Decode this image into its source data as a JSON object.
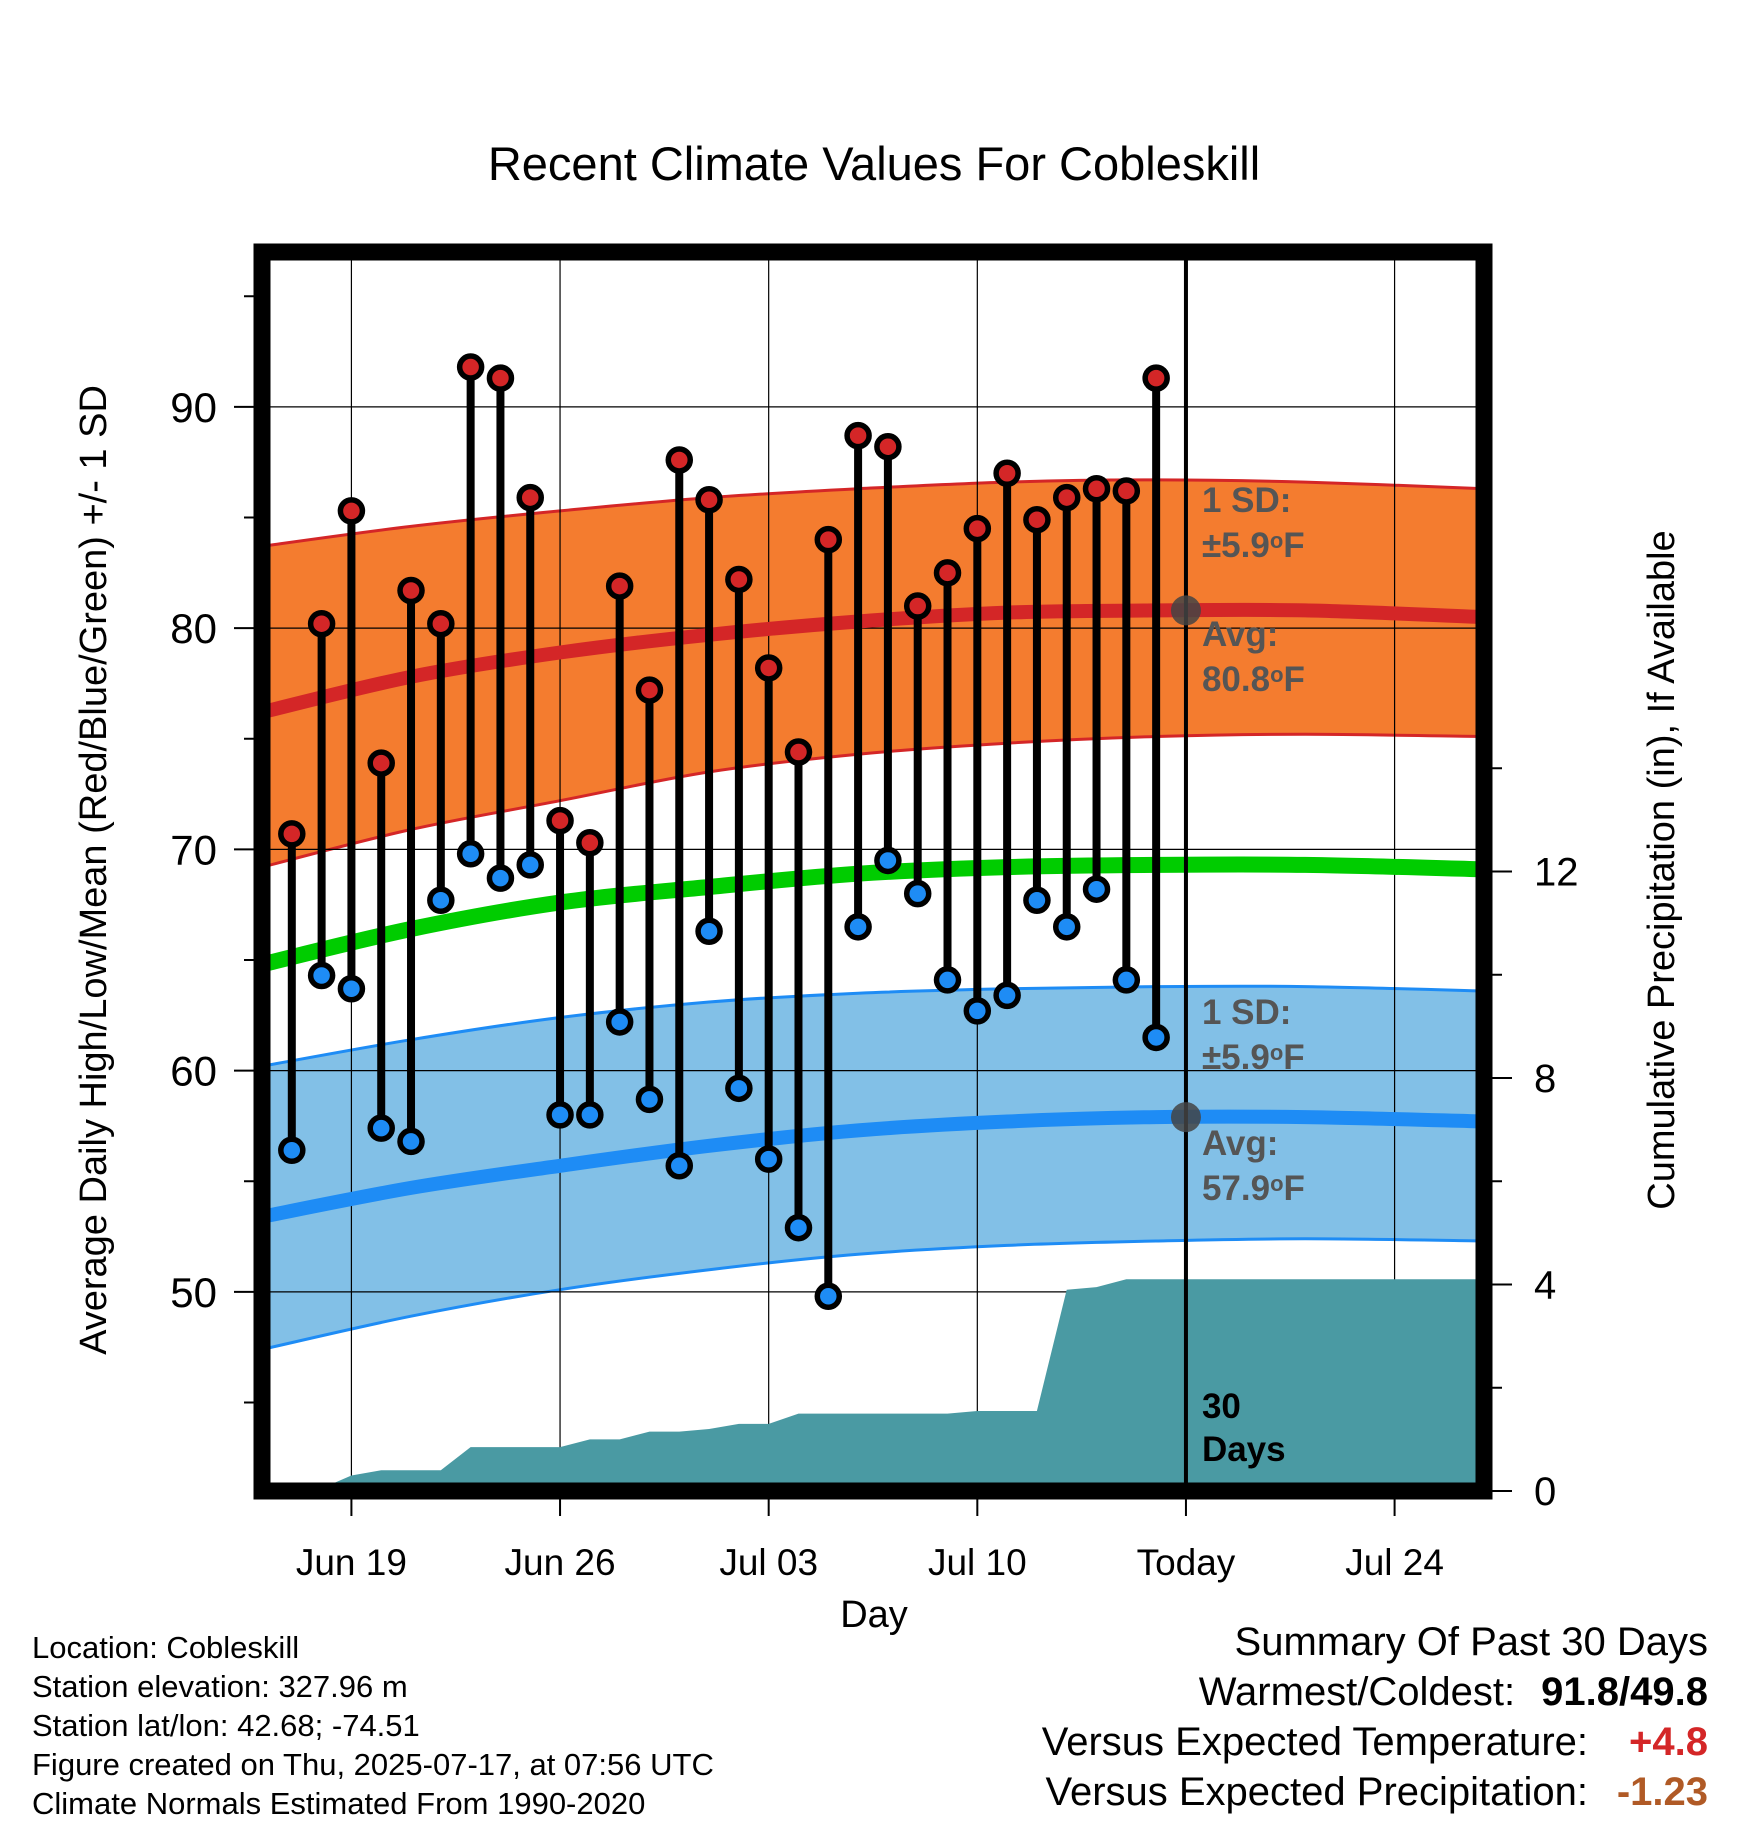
{
  "chart_data": {
    "type": "line",
    "title": "Recent Climate Values For Cobleskill",
    "xlabel": "Day",
    "ylabel": "Average Daily High/Low/Mean (Red/Blue/Green) +/- 1 SD",
    "ylabel_right": "Cumulative Precipitation (in), If Available",
    "x_tick_labels": [
      "Jun 19",
      "Jun 26",
      "Jul 03",
      "Jul 10",
      "Today",
      "Jul 24"
    ],
    "x_tick_dates": [
      "2025-06-19",
      "2025-06-26",
      "2025-07-03",
      "2025-07-10",
      "2025-07-17",
      "2025-07-24"
    ],
    "xlim": [
      "2025-06-16",
      "2025-07-27"
    ],
    "ylim": [
      41,
      97
    ],
    "y_ticks": [
      50,
      60,
      70,
      80,
      90
    ],
    "y2lim": [
      0,
      24
    ],
    "y2_ticks": [
      0,
      4,
      8,
      12
    ],
    "grid": true,
    "today": "2025-07-17",
    "normals": {
      "dates": [
        "2025-06-16",
        "2025-06-21",
        "2025-06-26",
        "2025-07-01",
        "2025-07-06",
        "2025-07-11",
        "2025-07-16",
        "2025-07-21",
        "2025-07-27"
      ],
      "high_avg": [
        76.2,
        77.8,
        78.9,
        79.7,
        80.3,
        80.7,
        80.8,
        80.8,
        80.5
      ],
      "high_upper": [
        83.7,
        84.6,
        85.3,
        85.9,
        86.3,
        86.6,
        86.7,
        86.6,
        86.3
      ],
      "high_lower": [
        69.2,
        70.9,
        72.2,
        73.5,
        74.3,
        74.8,
        75.1,
        75.2,
        75.1
      ],
      "mean_avg": [
        64.8,
        66.4,
        67.6,
        68.3,
        68.9,
        69.2,
        69.3,
        69.3,
        69.1
      ],
      "low_avg": [
        53.4,
        54.7,
        55.7,
        56.6,
        57.3,
        57.7,
        57.9,
        57.9,
        57.7
      ],
      "low_upper": [
        60.2,
        61.4,
        62.4,
        63.1,
        63.5,
        63.7,
        63.8,
        63.8,
        63.6
      ],
      "low_lower": [
        47.4,
        48.9,
        50.1,
        51.0,
        51.7,
        52.1,
        52.3,
        52.4,
        52.3
      ]
    },
    "observations": {
      "dates": [
        "2025-06-17",
        "2025-06-18",
        "2025-06-19",
        "2025-06-20",
        "2025-06-21",
        "2025-06-22",
        "2025-06-23",
        "2025-06-24",
        "2025-06-25",
        "2025-06-26",
        "2025-06-27",
        "2025-06-28",
        "2025-06-29",
        "2025-06-30",
        "2025-07-01",
        "2025-07-02",
        "2025-07-03",
        "2025-07-04",
        "2025-07-05",
        "2025-07-06",
        "2025-07-07",
        "2025-07-08",
        "2025-07-09",
        "2025-07-10",
        "2025-07-11",
        "2025-07-12",
        "2025-07-13",
        "2025-07-14",
        "2025-07-15",
        "2025-07-16"
      ],
      "high": [
        70.7,
        80.2,
        85.3,
        73.9,
        81.7,
        80.2,
        91.8,
        91.3,
        85.9,
        71.3,
        70.3,
        81.9,
        77.2,
        87.6,
        85.8,
        82.2,
        78.2,
        74.4,
        84.0,
        88.7,
        88.2,
        81.0,
        82.5,
        84.5,
        87.0,
        84.9,
        85.9,
        86.3,
        86.2,
        91.3
      ],
      "low": [
        56.4,
        64.3,
        63.7,
        57.4,
        56.8,
        67.7,
        69.8,
        68.7,
        69.3,
        58.0,
        58.0,
        62.2,
        58.7,
        55.7,
        66.3,
        59.2,
        56.0,
        52.9,
        49.8,
        66.5,
        69.5,
        68.0,
        64.1,
        62.7,
        63.4,
        67.7,
        66.5,
        68.2,
        64.1,
        61.5
      ]
    },
    "precip": {
      "dates": [
        "2025-06-16",
        "2025-06-17",
        "2025-06-18",
        "2025-06-19",
        "2025-06-20",
        "2025-06-21",
        "2025-06-22",
        "2025-06-23",
        "2025-06-24",
        "2025-06-25",
        "2025-06-26",
        "2025-06-27",
        "2025-06-28",
        "2025-06-29",
        "2025-06-30",
        "2025-07-01",
        "2025-07-02",
        "2025-07-03",
        "2025-07-04",
        "2025-07-05",
        "2025-07-06",
        "2025-07-07",
        "2025-07-08",
        "2025-07-09",
        "2025-07-10",
        "2025-07-11",
        "2025-07-12",
        "2025-07-13",
        "2025-07-14",
        "2025-07-15",
        "2025-07-16",
        "2025-07-17",
        "2025-07-27"
      ],
      "cumulative_in": [
        0,
        0,
        0.05,
        0.3,
        0.4,
        0.4,
        0.4,
        0.85,
        0.85,
        0.85,
        0.85,
        1.0,
        1.0,
        1.15,
        1.15,
        1.2,
        1.3,
        1.3,
        1.5,
        1.5,
        1.5,
        1.5,
        1.5,
        1.5,
        1.55,
        1.55,
        1.55,
        3.9,
        3.95,
        4.1,
        4.1,
        4.1,
        4.1
      ]
    },
    "annotations": {
      "high_sd_label": "1 SD:",
      "high_sd_value": "±5.9",
      "high_avg_label": "Avg:",
      "high_avg_value": "80.8",
      "low_sd_label": "1 SD:",
      "low_sd_value": "±5.9",
      "low_avg_label": "Avg:",
      "low_avg_value": "57.9",
      "degree_unit": "o",
      "temp_unit": "F",
      "period_days": "30",
      "period_word": "Days"
    },
    "colors": {
      "high_band": "#f47c2f",
      "high_line": "#d42627",
      "mean_line": "#00cc00",
      "low_band": "#82c0e7",
      "low_line": "#1e8cf5",
      "precip_area": "#4a9aa3",
      "high_marker": "#d42627",
      "low_marker": "#1e8cf5",
      "annotation_text": "#555555"
    }
  },
  "footer": {
    "location": "Location: Cobleskill",
    "elevation": "Station elevation: 327.96 m",
    "latlon": "Station lat/lon: 42.68; -74.51",
    "created": "Figure created on Thu, 2025-07-17, at 07:56 UTC",
    "normals": "Climate Normals Estimated From 1990-2020"
  },
  "summary": {
    "title": "Summary Of Past 30 Days",
    "warm_cold_label": "Warmest/Coldest:",
    "warmest": "91.8",
    "slash": "/",
    "coldest": "49.8",
    "temp_label": "Versus Expected Temperature:",
    "temp_value": "+4.8",
    "temp_color": "#d42627",
    "precip_label": "Versus Expected Precipitation:",
    "precip_value": "-1.23",
    "precip_color": "#b05a26"
  }
}
